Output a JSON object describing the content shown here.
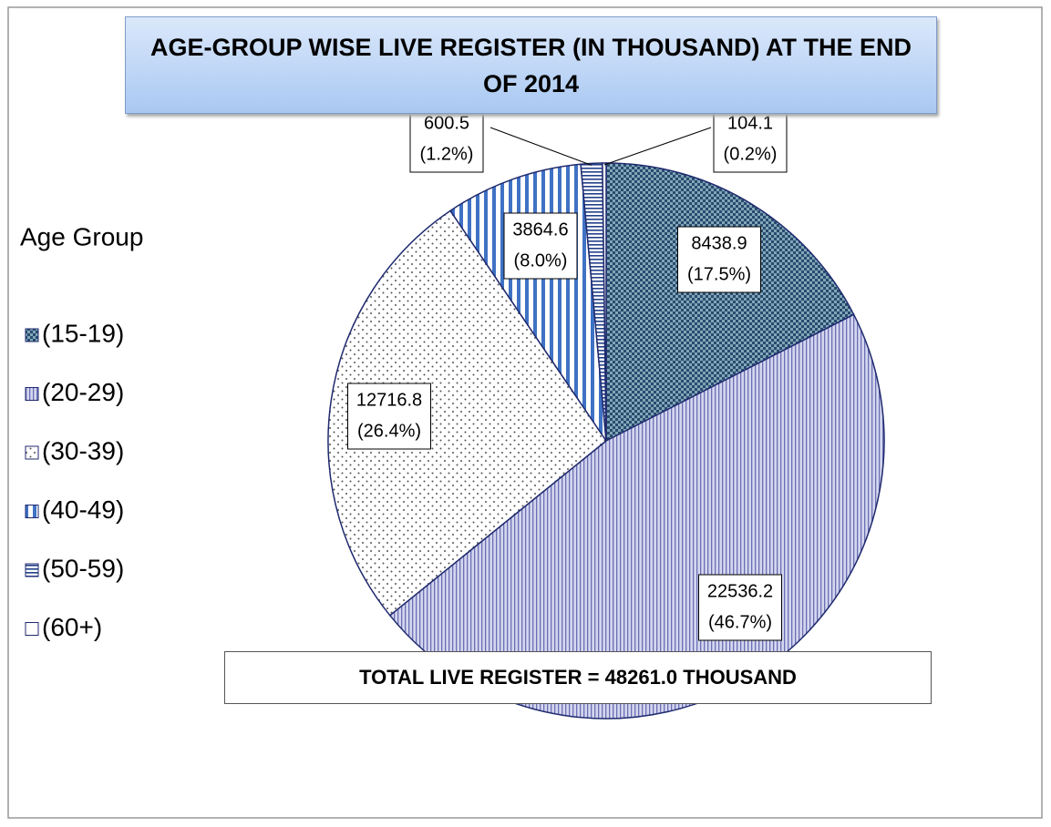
{
  "chart_data": {
    "type": "pie",
    "title": "AGE-GROUP WISE LIVE REGISTER (IN THOUSAND) AT THE END OF 2014",
    "legend_title": "Age Group",
    "categories": [
      "(15-19)",
      "(20-29)",
      "(30-39)",
      "(40-49)",
      "(50-59)",
      "(60+)"
    ],
    "values": [
      8438.9,
      22536.2,
      12716.8,
      3864.6,
      600.5,
      104.1
    ],
    "value_labels": [
      [
        "8438.9",
        "(17.5%)"
      ],
      [
        "22536.2",
        "(46.7%)"
      ],
      [
        "12716.8",
        "(26.4%)"
      ],
      [
        "3864.6",
        "(8.0%)"
      ],
      [
        "600.5",
        "(1.2%)"
      ],
      [
        "104.1",
        "(0.2%)"
      ]
    ],
    "colors": [
      "#2b4a6e",
      "#6a6fb5",
      "#555555",
      "#3f72c4",
      "#22408a",
      "#ffffff"
    ],
    "legend_position": "left",
    "annotation": "TOTAL LIVE REGISTER = 48261.0 THOUSAND"
  }
}
